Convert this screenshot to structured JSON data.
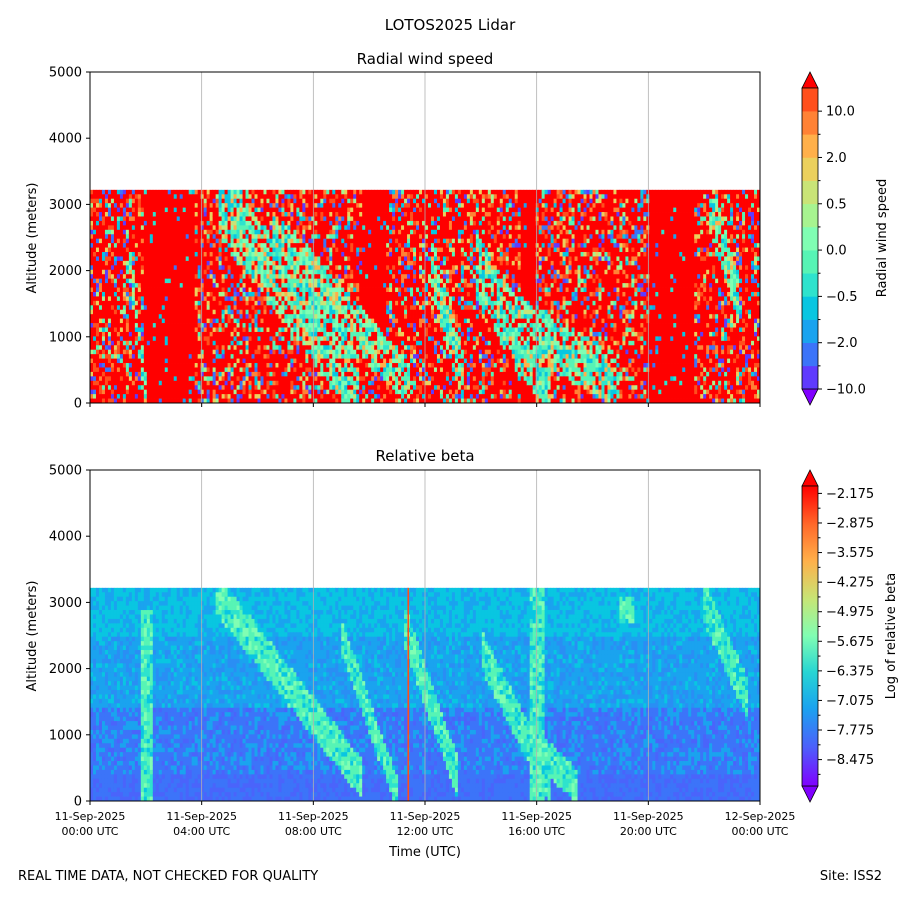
{
  "figure": {
    "suptitle": "LOTOS2025 Lidar",
    "footer_left": "REAL TIME DATA, NOT CHECKED FOR QUALITY",
    "footer_right": "Site: ISS2"
  },
  "chart_data": [
    {
      "type": "heatmap",
      "title": "Radial wind speed",
      "ylabel": "Altitude (meters)",
      "xlabel": "",
      "ylim": [
        0,
        5000
      ],
      "yticks": [
        "0",
        "1000",
        "2000",
        "3000",
        "4000",
        "5000"
      ],
      "xlim_hours": [
        0,
        24
      ],
      "data_top_altitude": 3220,
      "grid": "vertical lines at each x tick",
      "colorbar": {
        "label": "Radial wind speed",
        "tick_labels": [
          "−10.0",
          "−2.0",
          "−0.5",
          "0.0",
          "0.5",
          "2.0",
          "10.0"
        ],
        "levels": [
          -10,
          -5,
          -2,
          -1,
          -0.5,
          -0.25,
          0,
          0.25,
          0.5,
          1,
          2,
          5,
          10
        ],
        "extend": "both",
        "colors": [
          "#8000ff",
          "#5f3bfe",
          "#3c74f9",
          "#1aa3ef",
          "#09c6e1",
          "#2ee3cd",
          "#57f4b5",
          "#80feb3",
          "#a7f490",
          "#c9e477",
          "#ebd05d",
          "#ffb04a",
          "#ff8235",
          "#ff4f1c",
          "#ff0000"
        ]
      },
      "description": "Mostly saturated red (+10) across the day with interleaved narrow vertical streaks; cyan/green bands descend diagonally from ~3100 m near 05:00 UTC to ~300 m near 10:00 UTC; mixed greens around 12:00-16:00 UTC; red block 20:00-21:30 UTC; cyan streaks near 22:30 UTC."
    },
    {
      "type": "heatmap",
      "title": "Relative beta",
      "ylabel": "Altitude (meters)",
      "xlabel": "Time (UTC)",
      "ylim": [
        0,
        5000
      ],
      "yticks": [
        "0",
        "1000",
        "2000",
        "3000",
        "4000",
        "5000"
      ],
      "xlim_hours": [
        0,
        24
      ],
      "xtick_labels": [
        {
          "date": "11-Sep-2025",
          "time": "00:00 UTC"
        },
        {
          "date": "11-Sep-2025",
          "time": "04:00 UTC"
        },
        {
          "date": "11-Sep-2025",
          "time": "08:00 UTC"
        },
        {
          "date": "11-Sep-2025",
          "time": "12:00 UTC"
        },
        {
          "date": "11-Sep-2025",
          "time": "16:00 UTC"
        },
        {
          "date": "11-Sep-2025",
          "time": "20:00 UTC"
        },
        {
          "date": "12-Sep-2025",
          "time": "00:00 UTC"
        }
      ],
      "data_top_altitude": 3220,
      "grid": "vertical lines at each x tick",
      "colorbar": {
        "label": "Log of relative beta",
        "tick_labels": [
          "−2.175",
          "−2.875",
          "−3.575",
          "−4.275",
          "−4.975",
          "−5.675",
          "−6.375",
          "−7.075",
          "−7.775",
          "−8.475"
        ],
        "range": [
          -9.1,
          -2.0
        ],
        "extend": "both"
      },
      "description": "Background mostly blue to cyan (about -7.8 to -7.0), greens (about -6.4) in diagonal descending aerosol/cloud bands similar to the wind panel; a thin red vertical line near 11:25 UTC; darker blue near the surface."
    }
  ]
}
